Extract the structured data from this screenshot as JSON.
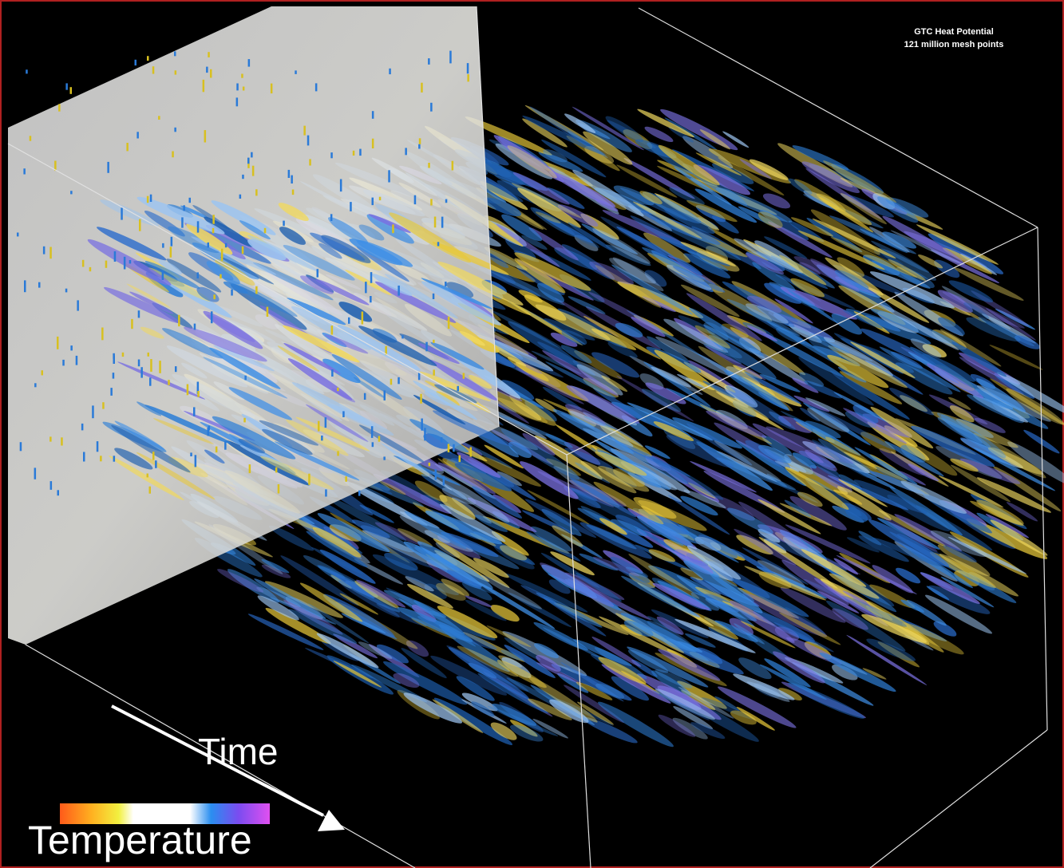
{
  "caption": {
    "title": "GTC Heat Potential",
    "subtitle": "121 million mesh points"
  },
  "labels": {
    "time": "Time",
    "temperature": "Temperature"
  }
}
